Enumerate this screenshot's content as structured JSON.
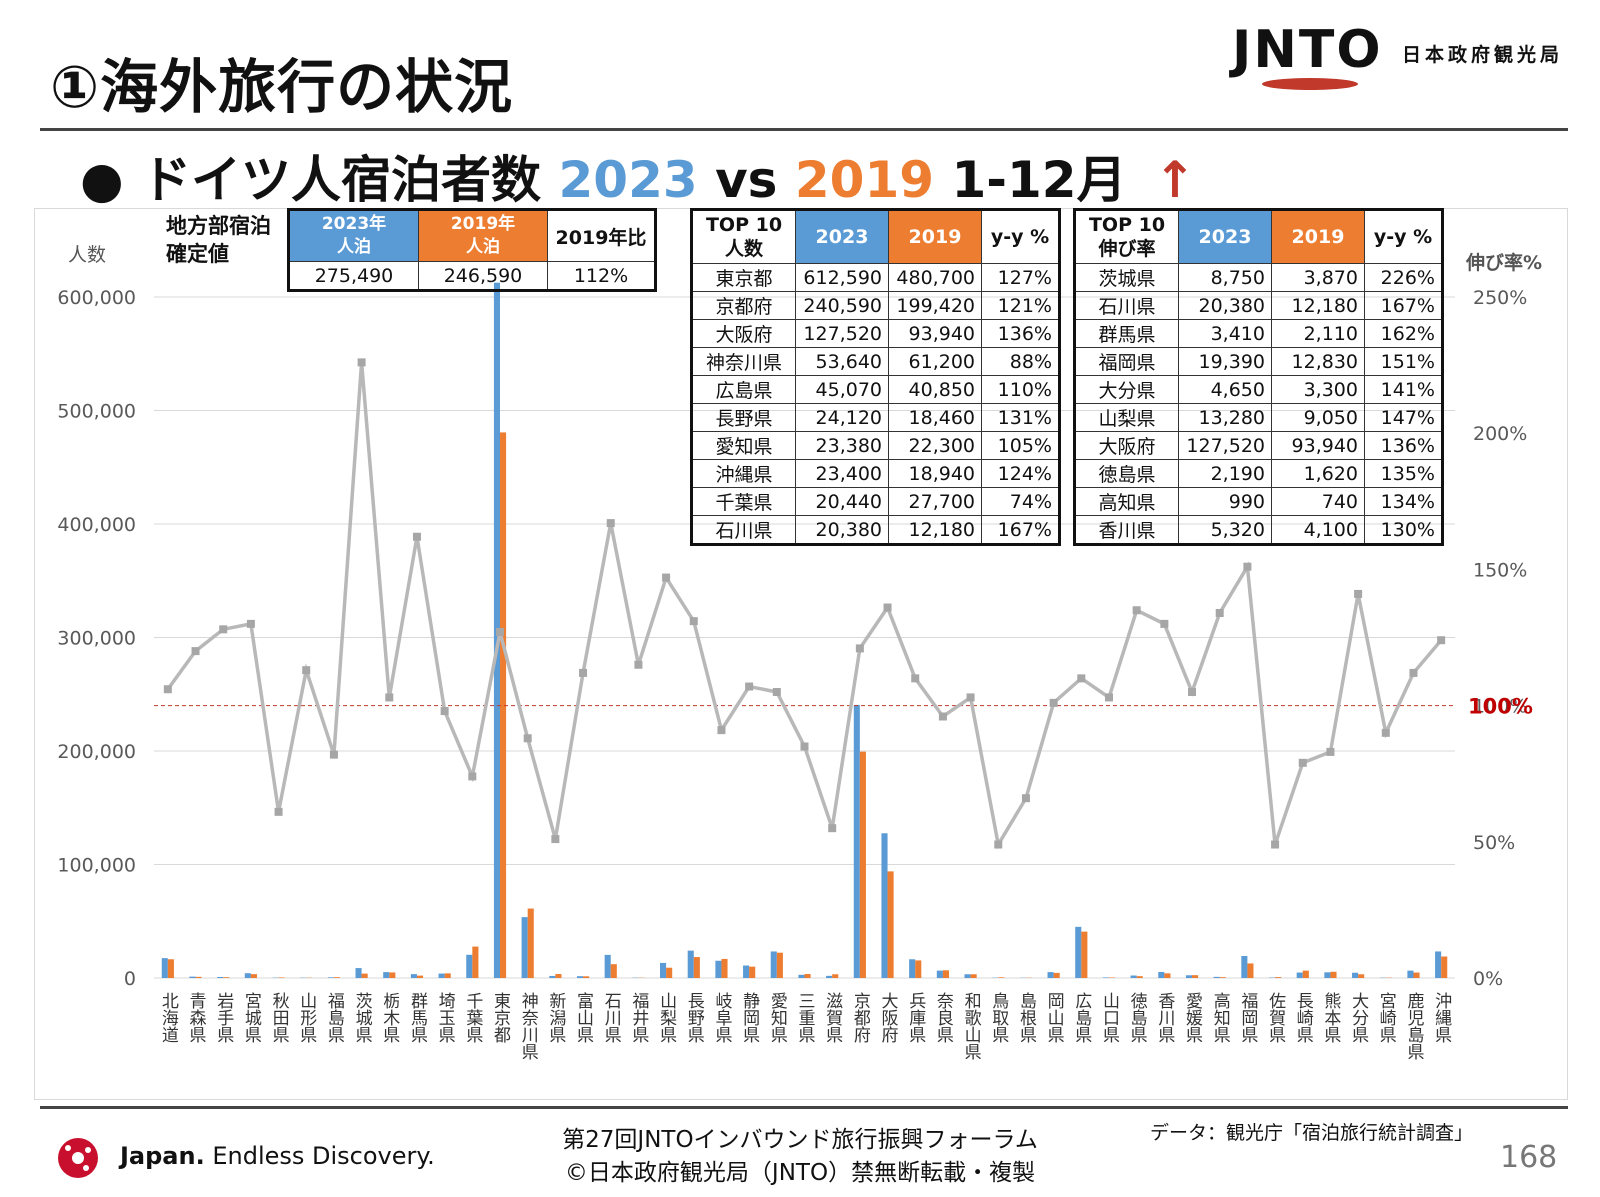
{
  "header": {
    "title": "①海外旅行の状況",
    "logo_text": "JNTO",
    "agency": "日本政府観光局"
  },
  "subtitle": {
    "bullet": "●",
    "prefix": "ドイツ人宿泊者数",
    "year_a": "2023",
    "vs": "vs",
    "year_b": "2019",
    "period": "1-12月",
    "arrow": "↑"
  },
  "summary": {
    "label_line1": "地方部宿泊",
    "label_line2": "確定値",
    "col1_line1": "2023年",
    "col1_line2": "人泊",
    "col2_line1": "2019年",
    "col2_line2": "人泊",
    "col3": "2019年比",
    "val1": "275,490",
    "val2": "246,590",
    "val3": "112%"
  },
  "top10_count": {
    "h1_line1": "TOP 10",
    "h1_line2": "人数",
    "h2": "2023",
    "h3": "2019",
    "h4": "y-y %",
    "rows": [
      [
        "東京都",
        "612,590",
        "480,700",
        "127%"
      ],
      [
        "京都府",
        "240,590",
        "199,420",
        "121%"
      ],
      [
        "大阪府",
        "127,520",
        "93,940",
        "136%"
      ],
      [
        "神奈川県",
        "53,640",
        "61,200",
        "88%"
      ],
      [
        "広島県",
        "45,070",
        "40,850",
        "110%"
      ],
      [
        "長野県",
        "24,120",
        "18,460",
        "131%"
      ],
      [
        "愛知県",
        "23,380",
        "22,300",
        "105%"
      ],
      [
        "沖縄県",
        "23,400",
        "18,940",
        "124%"
      ],
      [
        "千葉県",
        "20,440",
        "27,700",
        "74%"
      ],
      [
        "石川県",
        "20,380",
        "12,180",
        "167%"
      ]
    ]
  },
  "top10_growth": {
    "h1_line1": "TOP 10",
    "h1_line2": "伸び率",
    "h2": "2023",
    "h3": "2019",
    "h4": "y-y %",
    "rows": [
      [
        "茨城県",
        "8,750",
        "3,870",
        "226%"
      ],
      [
        "石川県",
        "20,380",
        "12,180",
        "167%"
      ],
      [
        "群馬県",
        "3,410",
        "2,110",
        "162%"
      ],
      [
        "福岡県",
        "19,390",
        "12,830",
        "151%"
      ],
      [
        "大分県",
        "4,650",
        "3,300",
        "141%"
      ],
      [
        "山梨県",
        "13,280",
        "9,050",
        "147%"
      ],
      [
        "大阪府",
        "127,520",
        "93,940",
        "136%"
      ],
      [
        "徳島県",
        "2,190",
        "1,620",
        "135%"
      ],
      [
        "高知県",
        "990",
        "740",
        "134%"
      ],
      [
        "香川県",
        "5,320",
        "4,100",
        "130%"
      ]
    ]
  },
  "chart_data": {
    "type": "bar",
    "ylabel": "人数",
    "y2label": "伸び率%",
    "ylim": [
      0,
      600000
    ],
    "y2lim": [
      0,
      2.5
    ],
    "yticks": [
      "0",
      "100,000",
      "200,000",
      "300,000",
      "400,000",
      "500,000",
      "600,000"
    ],
    "y2ticks": [
      "0%",
      "50%",
      "100%",
      "150%",
      "200%",
      "250%"
    ],
    "reference_label": "100%",
    "reference_value": 1.0,
    "categories": [
      "北海道",
      "青森県",
      "岩手県",
      "宮城県",
      "秋田県",
      "山形県",
      "福島県",
      "茨城県",
      "栃木県",
      "群馬県",
      "埼玉県",
      "千葉県",
      "東京都",
      "神奈川県",
      "新潟県",
      "富山県",
      "石川県",
      "福井県",
      "山梨県",
      "長野県",
      "岐阜県",
      "静岡県",
      "愛知県",
      "三重県",
      "滋賀県",
      "京都府",
      "大阪府",
      "兵庫県",
      "奈良県",
      "和歌山県",
      "鳥取県",
      "島根県",
      "岡山県",
      "広島県",
      "山口県",
      "徳島県",
      "香川県",
      "愛媛県",
      "高知県",
      "福岡県",
      "佐賀県",
      "長崎県",
      "熊本県",
      "大分県",
      "宮崎県",
      "鹿児島県",
      "沖縄県"
    ],
    "series": [
      {
        "name": "2023",
        "color": "#5b9bd5",
        "axis": "left",
        "values": [
          17500,
          1200,
          900,
          4200,
          300,
          300,
          600,
          8750,
          5200,
          3410,
          3900,
          20440,
          612590,
          53640,
          1800,
          1600,
          20380,
          300,
          13280,
          24120,
          15200,
          11000,
          23380,
          2800,
          1900,
          240590,
          127520,
          16500,
          6500,
          3300,
          300,
          200,
          5200,
          45070,
          500,
          2190,
          5320,
          2400,
          990,
          19390,
          400,
          4800,
          5000,
          4650,
          300,
          6500,
          23400
        ]
      },
      {
        "name": "2019",
        "color": "#ed7d31",
        "axis": "left",
        "values": [
          16500,
          1000,
          700,
          3400,
          500,
          250,
          700,
          3870,
          4900,
          2110,
          4100,
          27700,
          480700,
          61200,
          3500,
          1500,
          12180,
          250,
          9050,
          18460,
          16800,
          10000,
          22300,
          3500,
          3300,
          199420,
          93940,
          15500,
          6800,
          3300,
          600,
          250,
          4500,
          40850,
          450,
          1620,
          4100,
          2500,
          740,
          12830,
          800,
          6500,
          5500,
          3300,
          300,
          4800,
          18940
        ]
      },
      {
        "name": "y-y %",
        "color": "#b8b8b8",
        "axis": "right",
        "values": [
          1.06,
          1.2,
          1.28,
          1.3,
          0.61,
          1.13,
          0.82,
          2.26,
          1.03,
          1.62,
          0.98,
          0.74,
          1.27,
          0.88,
          0.51,
          1.12,
          1.67,
          1.15,
          1.47,
          1.31,
          0.91,
          1.07,
          1.05,
          0.85,
          0.55,
          1.21,
          1.36,
          1.1,
          0.96,
          1.03,
          0.49,
          0.66,
          1.01,
          1.1,
          1.03,
          1.35,
          1.3,
          1.05,
          1.34,
          1.51,
          0.49,
          0.79,
          0.83,
          1.41,
          0.9,
          1.12,
          1.24
        ]
      }
    ]
  },
  "footer": {
    "brand_bold": "Japan.",
    "brand_rest": " Endless Discovery.",
    "forum_line1": "第27回JNTOインバウンド旅行振興フォーラム",
    "forum_line2": "©日本政府観光局（JNTO）禁無断転載・複製",
    "source": "データ：観光庁「宿泊旅行統計調査」",
    "page": "168"
  }
}
